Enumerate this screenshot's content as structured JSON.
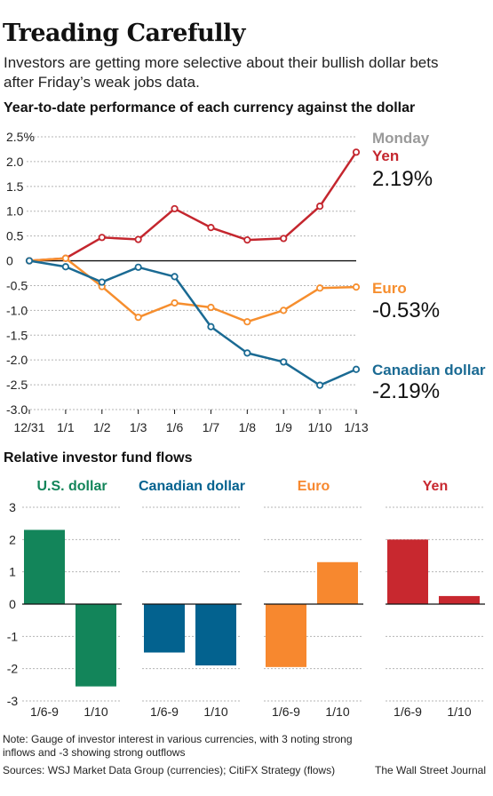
{
  "headline": "Treading Carefully",
  "subhead": "Investors are getting more selective about their bullish dollar bets after Friday’s weak jobs data.",
  "chart_data": [
    {
      "type": "line",
      "title": "Year-to-date performance of each currency against the dollar",
      "x": [
        "12/31",
        "1/1",
        "1/2",
        "1/3",
        "1/6",
        "1/7",
        "1/8",
        "1/9",
        "1/10",
        "1/13"
      ],
      "ylim": [
        -3.0,
        2.5
      ],
      "yticks": [
        "2.5%",
        "2.0",
        "1.5",
        "1.0",
        "0.5",
        "0",
        "-0.5",
        "-1.0",
        "-1.5",
        "-2.0",
        "-2.5",
        "-3.0"
      ],
      "ytick_values": [
        2.5,
        2.0,
        1.5,
        1.0,
        0.5,
        0,
        -0.5,
        -1.0,
        -1.5,
        -2.0,
        -2.5,
        -3.0
      ],
      "grid": true,
      "annotation_header": "Monday",
      "series": [
        {
          "name": "Yen",
          "color": "#c4262e",
          "values": [
            0,
            0.05,
            0.47,
            0.43,
            1.05,
            0.67,
            0.42,
            0.45,
            1.1,
            2.19
          ],
          "label_value": "2.19%"
        },
        {
          "name": "Euro",
          "color": "#f68e2e",
          "values": [
            0,
            0.05,
            -0.52,
            -1.14,
            -0.85,
            -0.94,
            -1.23,
            -1.0,
            -0.55,
            -0.53
          ],
          "label_value": "-0.53%"
        },
        {
          "name": "Canadian dollar",
          "color": "#1a6a93",
          "values": [
            0,
            -0.12,
            -0.43,
            -0.13,
            -0.32,
            -1.33,
            -1.86,
            -2.04,
            -2.51,
            -2.19
          ],
          "label_value": "-2.19%"
        }
      ]
    },
    {
      "type": "bar",
      "title": "Relative investor fund flows",
      "ylim": [
        -3,
        3
      ],
      "yticks": [
        "3",
        "2",
        "1",
        "0",
        "-1",
        "-2",
        "-3"
      ],
      "ytick_values": [
        3,
        2,
        1,
        0,
        -1,
        -2,
        -3
      ],
      "categories": [
        "1/6-9",
        "1/10"
      ],
      "groups": [
        {
          "name": "U.S. dollar",
          "color": "#13855a",
          "values": [
            2.3,
            -2.55
          ]
        },
        {
          "name": "Canadian dollar",
          "color": "#03628f",
          "values": [
            -1.5,
            -1.9
          ]
        },
        {
          "name": "Euro",
          "color": "#f7882f",
          "values": [
            -1.95,
            1.3
          ]
        },
        {
          "name": "Yen",
          "color": "#c8282f",
          "values": [
            2.0,
            0.25
          ]
        }
      ]
    }
  ],
  "footer": {
    "note": "Note: Gauge of investor interest in various currencies, with 3 noting strong inflows and -3 showing strong outflows",
    "sources": "Sources: WSJ Market Data Group (currencies); CitiFX Strategy (flows)",
    "credit": "The Wall Street Journal"
  },
  "colors": {
    "grid": "#b5b5b5",
    "axis": "#111111",
    "monday": "#9a9a9a"
  }
}
